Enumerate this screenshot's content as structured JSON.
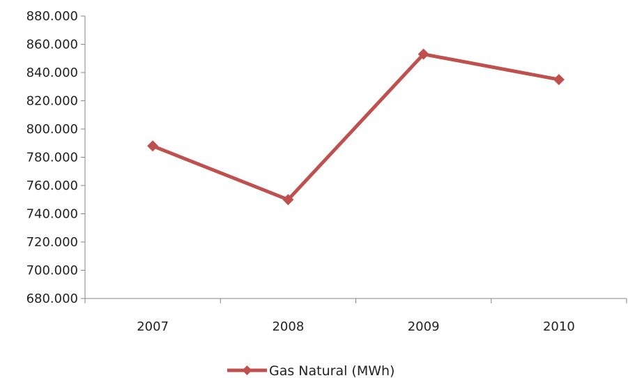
{
  "chart_data": {
    "type": "line",
    "categories": [
      "2007",
      "2008",
      "2009",
      "2010"
    ],
    "series": [
      {
        "name": "Gas Natural (MWh)",
        "values": [
          788,
          750,
          853,
          835
        ],
        "color": "#C0504D",
        "marker": "diamond"
      }
    ],
    "ylim": [
      680,
      880
    ],
    "yticks": [
      680,
      700,
      720,
      740,
      760,
      780,
      800,
      820,
      840,
      860,
      880
    ],
    "ytick_labels": [
      "680.000",
      "700.000",
      "720.000",
      "740.000",
      "760.000",
      "780.000",
      "800.000",
      "820.000",
      "840.000",
      "860.000",
      "880.000"
    ],
    "grid": false,
    "legend_position": "bottom",
    "axis_color": "#868686"
  }
}
